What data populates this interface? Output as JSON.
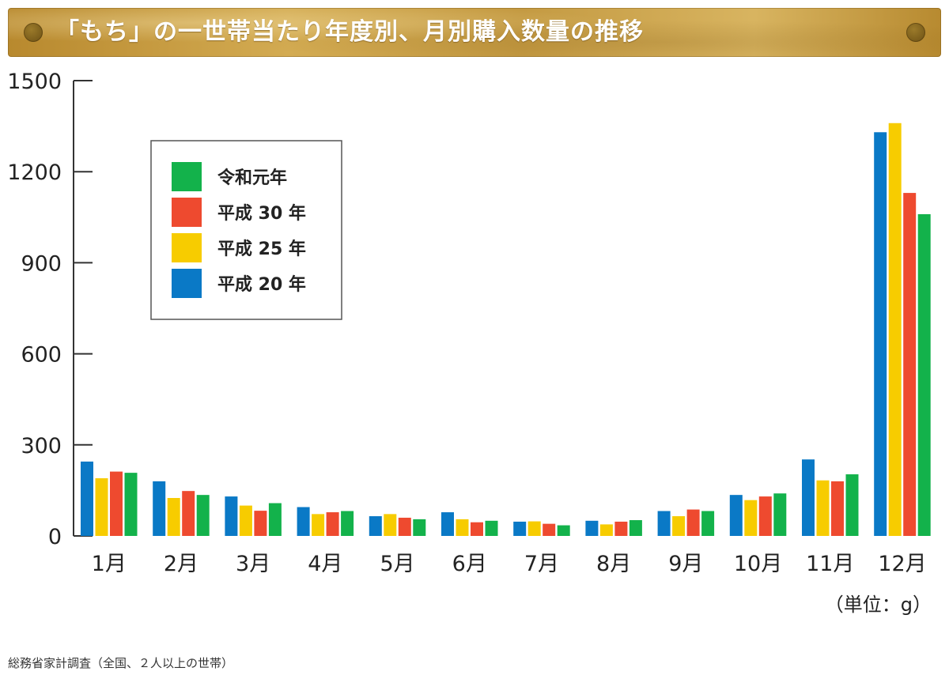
{
  "title": "「もち」の一世帯当たり年度別、月別購入数量の推移",
  "unit_note": "（単位：g）",
  "source_note": "総務省家計調査（全国、２人以上の世帯）",
  "colors": {
    "heisei20": "#0a79c6",
    "heisei25": "#f7cc00",
    "heisei30": "#ee4a2f",
    "reiwa1": "#13b24b",
    "axis": "#333333",
    "title_bar": "#c8a04a"
  },
  "chart_data": {
    "type": "bar",
    "title": "「もち」の一世帯当たり年度別、月別購入数量の推移",
    "xlabel": "",
    "ylabel": "",
    "unit": "g",
    "ylim": [
      0,
      1500
    ],
    "yticks": [
      0,
      300,
      600,
      900,
      1200,
      1500
    ],
    "grid": false,
    "legend_position": "top-left",
    "categories": [
      "1月",
      "2月",
      "3月",
      "4月",
      "5月",
      "6月",
      "7月",
      "8月",
      "9月",
      "10月",
      "11月",
      "12月"
    ],
    "series": [
      {
        "name": "平成 20 年",
        "color": "#0a79c6",
        "values": [
          245,
          180,
          130,
          95,
          65,
          78,
          47,
          50,
          82,
          135,
          252,
          1330
        ]
      },
      {
        "name": "平成 25 年",
        "color": "#f7cc00",
        "values": [
          190,
          125,
          100,
          72,
          72,
          55,
          48,
          38,
          65,
          118,
          183,
          1360
        ]
      },
      {
        "name": "平成 30 年",
        "color": "#ee4a2f",
        "values": [
          212,
          148,
          83,
          78,
          60,
          45,
          40,
          47,
          87,
          130,
          180,
          1130
        ]
      },
      {
        "name": "令和元年",
        "color": "#13b24b",
        "values": [
          208,
          135,
          108,
          82,
          55,
          50,
          35,
          52,
          82,
          140,
          203,
          1060
        ]
      }
    ],
    "legend_order": [
      "令和元年",
      "平成 30 年",
      "平成 25 年",
      "平成 20 年"
    ]
  }
}
